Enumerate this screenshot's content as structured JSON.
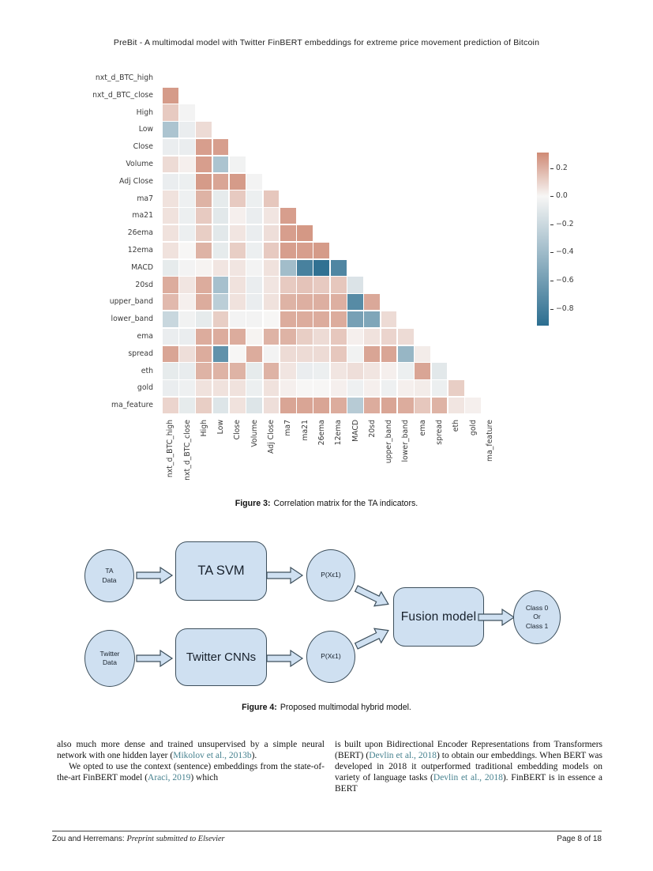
{
  "header": {
    "title": "PreBit - A multimodal model with Twitter FinBERT embeddings for extreme price movement prediction of Bitcoin"
  },
  "chart_data": {
    "type": "heatmap",
    "title": "Correlation matrix for the TA indicators",
    "labels": [
      "nxt_d_BTC_high",
      "nxt_d_BTC_close",
      "High",
      "Low",
      "Close",
      "Volume",
      "Adj Close",
      "ma7",
      "ma21",
      "26ema",
      "12ema",
      "MACD",
      "20sd",
      "upper_band",
      "lower_band",
      "ema",
      "spread",
      "eth",
      "gold",
      "ma_feature"
    ],
    "mask": "upper-triangle-and-diagonal",
    "matrix_lower_triangle": [
      [],
      [
        0.27
      ],
      [
        0.13,
        -0.02
      ],
      [
        -0.35,
        -0.06,
        0.08
      ],
      [
        -0.06,
        -0.06,
        0.26,
        0.26
      ],
      [
        0.08,
        0.02,
        0.26,
        -0.35,
        -0.03
      ],
      [
        -0.06,
        -0.05,
        0.27,
        0.24,
        0.27,
        -0.02
      ],
      [
        0.06,
        -0.04,
        0.2,
        -0.08,
        0.13,
        -0.05,
        0.14
      ],
      [
        0.06,
        -0.05,
        0.13,
        -0.1,
        0.02,
        -0.06,
        0.05,
        0.26
      ],
      [
        0.06,
        -0.05,
        0.12,
        -0.1,
        0.05,
        -0.06,
        0.07,
        0.26,
        0.28
      ],
      [
        0.06,
        0.0,
        0.2,
        -0.08,
        0.12,
        -0.05,
        0.13,
        0.26,
        0.26,
        0.27
      ],
      [
        -0.08,
        -0.02,
        0.01,
        0.05,
        0.05,
        -0.02,
        0.06,
        -0.4,
        -0.82,
        -0.93,
        -0.78
      ],
      [
        0.22,
        0.05,
        0.22,
        -0.38,
        0.06,
        -0.06,
        0.05,
        0.13,
        0.15,
        0.13,
        0.14,
        -0.13
      ],
      [
        0.18,
        0.02,
        0.22,
        -0.28,
        0.06,
        -0.06,
        0.06,
        0.2,
        0.21,
        0.21,
        0.21,
        -0.75,
        0.23
      ],
      [
        -0.22,
        -0.03,
        -0.08,
        0.12,
        -0.02,
        -0.02,
        0.0,
        0.22,
        0.22,
        0.22,
        0.22,
        -0.6,
        -0.56,
        0.08
      ],
      [
        -0.06,
        -0.06,
        0.22,
        0.22,
        0.22,
        0.01,
        0.2,
        0.2,
        0.12,
        0.08,
        0.14,
        0.02,
        0.06,
        0.1,
        0.08
      ],
      [
        0.24,
        0.07,
        0.22,
        -0.7,
        0.0,
        0.22,
        -0.02,
        0.08,
        0.08,
        0.08,
        0.14,
        -0.03,
        0.24,
        0.24,
        -0.45,
        0.03
      ],
      [
        -0.08,
        -0.07,
        0.2,
        0.2,
        0.2,
        -0.08,
        0.2,
        0.05,
        -0.06,
        -0.05,
        0.05,
        0.07,
        0.05,
        0.02,
        -0.05,
        0.24,
        -0.1
      ],
      [
        -0.06,
        -0.04,
        0.06,
        0.06,
        0.06,
        -0.05,
        0.06,
        0.02,
        0.0,
        0.0,
        0.02,
        -0.04,
        0.02,
        -0.04,
        0.02,
        0.03,
        -0.05,
        0.12
      ],
      [
        0.1,
        -0.08,
        0.12,
        -0.12,
        0.06,
        -0.12,
        0.07,
        0.24,
        0.24,
        0.24,
        0.22,
        -0.3,
        0.22,
        0.24,
        0.22,
        0.14,
        0.2,
        0.05,
        0.02
      ]
    ],
    "value_range": [
      -0.95,
      0.32
    ],
    "colorbar": {
      "top_value": 0.31,
      "bottom_value": -0.92,
      "ticks": [
        {
          "label": "0.2",
          "value": 0.2
        },
        {
          "label": "0.0",
          "value": 0.0
        },
        {
          "label": "−0.2",
          "value": -0.2
        },
        {
          "label": "−0.4",
          "value": -0.4
        },
        {
          "label": "−0.6",
          "value": -0.6
        },
        {
          "label": "−0.8",
          "value": -0.8
        }
      ]
    }
  },
  "figure3": {
    "caption_label": "Figure 3:",
    "caption_text": "Correlation matrix for the TA indicators."
  },
  "figure4": {
    "caption_label": "Figure 4:",
    "caption_text": "Proposed multimodal hybrid model.",
    "nodes": {
      "ta_data": "TA\nData",
      "ta_svm": "TA SVM",
      "p_top": "P(Xϵ1)",
      "twitter_data": "Twitter\nData",
      "twitter_cnns": "Twitter CNNs",
      "p_bottom": "P(Xϵ1)",
      "fusion": "Fusion model",
      "output": "Class 0\nOr\nClass 1"
    }
  },
  "body": {
    "left": [
      {
        "indent": false,
        "segments": [
          {
            "t": "also much more dense and trained unsupervised by a simple neural network with one hidden layer ("
          },
          {
            "t": "Mikolov et al., 2013b",
            "c": true
          },
          {
            "t": ")."
          }
        ]
      },
      {
        "indent": true,
        "segments": [
          {
            "t": "We opted to use the context (sentence) embeddings from the state-of-the-art FinBERT model ("
          },
          {
            "t": "Araci, 2019",
            "c": true
          },
          {
            "t": ") which"
          }
        ]
      }
    ],
    "right": [
      {
        "indent": false,
        "segments": [
          {
            "t": "is built upon Bidirectional Encoder Representations from Transformers (BERT) ("
          },
          {
            "t": "Devlin et al., 2018",
            "c": true
          },
          {
            "t": ") to obtain our embeddings. When BERT was developed in 2018 it outperformed traditional embedding models on variety of language tasks ("
          },
          {
            "t": "Devlin et al., 2018",
            "c": true
          },
          {
            "t": "). FinBERT is in essence a BERT"
          }
        ]
      }
    ]
  },
  "footer": {
    "authors": "Zou and Herremans:",
    "note": "Preprint submitted to Elsevier",
    "page": "Page 8 of 18"
  },
  "colors": {
    "citation": "#47828f",
    "heatmap_positive_end": "#cf8a75",
    "heatmap_mid": "#f7f6f5",
    "heatmap_negative_end": "#2c6e90",
    "diagram_fill": "#cfe0f1",
    "diagram_border": "#3d4f5c"
  }
}
